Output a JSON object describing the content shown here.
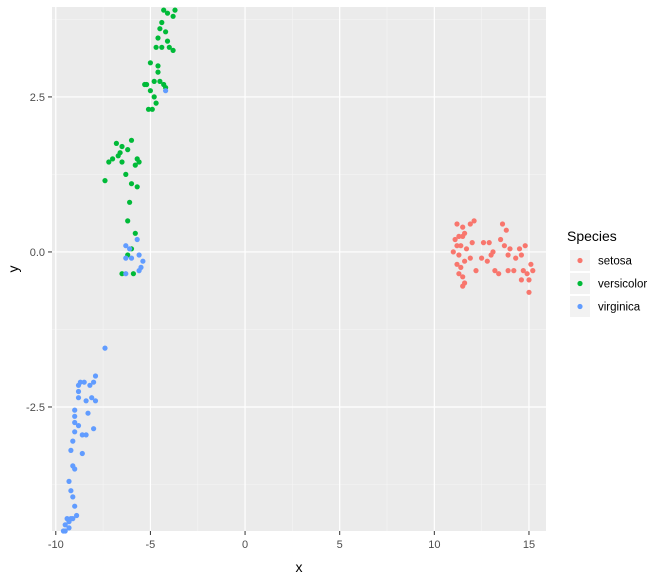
{
  "chart_data": {
    "type": "scatter",
    "title": "",
    "xlabel": "x",
    "ylabel": "y",
    "xlim": [
      -10.2,
      15.9
    ],
    "ylim": [
      -4.5,
      3.95
    ],
    "x_ticks": [
      -10,
      -5,
      0,
      5,
      10,
      15
    ],
    "y_ticks": [
      2.5,
      0.0,
      -2.5
    ],
    "y_tick_labels": [
      "2.5",
      "0.0",
      "-2.5"
    ],
    "grid": true,
    "background": "#ebebeb",
    "legend": {
      "title": "Species",
      "placement": "right"
    },
    "series": [
      {
        "name": "setosa",
        "color": "#F8766D",
        "points": [
          [
            11.2,
            0.45
          ],
          [
            11.5,
            0.4
          ],
          [
            11.9,
            0.45
          ],
          [
            12.1,
            0.5
          ],
          [
            11.1,
            0.2
          ],
          [
            11.3,
            0.25
          ],
          [
            11.5,
            0.25
          ],
          [
            11.6,
            0.3
          ],
          [
            11.2,
            0.1
          ],
          [
            11.4,
            0.1
          ],
          [
            11.0,
            0.0
          ],
          [
            11.7,
            0.05
          ],
          [
            11.3,
            -0.05
          ],
          [
            11.9,
            -0.1
          ],
          [
            11.6,
            -0.15
          ],
          [
            11.2,
            -0.2
          ],
          [
            11.4,
            -0.25
          ],
          [
            11.3,
            -0.35
          ],
          [
            11.5,
            -0.4
          ],
          [
            11.6,
            -0.5
          ],
          [
            11.5,
            -0.55
          ],
          [
            12.2,
            -0.3
          ],
          [
            12.0,
            0.15
          ],
          [
            12.6,
            0.15
          ],
          [
            12.9,
            0.15
          ],
          [
            12.5,
            -0.1
          ],
          [
            12.8,
            -0.15
          ],
          [
            13.0,
            -0.05
          ],
          [
            13.2,
            -0.3
          ],
          [
            13.4,
            -0.35
          ],
          [
            13.1,
            0.0
          ],
          [
            13.5,
            0.2
          ],
          [
            13.6,
            0.45
          ],
          [
            13.8,
            0.35
          ],
          [
            13.7,
            0.1
          ],
          [
            14.0,
            0.05
          ],
          [
            13.9,
            -0.05
          ],
          [
            14.3,
            -0.1
          ],
          [
            14.5,
            0.05
          ],
          [
            14.8,
            0.1
          ],
          [
            14.6,
            -0.05
          ],
          [
            14.2,
            -0.3
          ],
          [
            14.7,
            -0.3
          ],
          [
            14.9,
            -0.35
          ],
          [
            15.1,
            -0.2
          ],
          [
            15.2,
            -0.3
          ],
          [
            15.0,
            -0.45
          ],
          [
            15.0,
            -0.65
          ],
          [
            14.6,
            -0.45
          ],
          [
            13.9,
            -0.3
          ]
        ]
      },
      {
        "name": "versicolor",
        "color": "#00BA38",
        "points": [
          [
            -4.3,
            3.9
          ],
          [
            -4.1,
            3.85
          ],
          [
            -3.7,
            3.9
          ],
          [
            -3.8,
            3.8
          ],
          [
            -4.5,
            3.6
          ],
          [
            -4.2,
            3.55
          ],
          [
            -4.6,
            3.45
          ],
          [
            -4.1,
            3.4
          ],
          [
            -4.0,
            3.3
          ],
          [
            -4.4,
            3.3
          ],
          [
            -3.8,
            3.25
          ],
          [
            -4.7,
            3.3
          ],
          [
            -5.0,
            3.05
          ],
          [
            -4.6,
            2.9
          ],
          [
            -4.8,
            2.75
          ],
          [
            -5.2,
            2.7
          ],
          [
            -5.0,
            2.6
          ],
          [
            -4.5,
            2.75
          ],
          [
            -4.3,
            2.7
          ],
          [
            -4.8,
            2.5
          ],
          [
            -4.9,
            2.3
          ],
          [
            -5.1,
            2.3
          ],
          [
            -4.7,
            2.4
          ],
          [
            -6.5,
            1.7
          ],
          [
            -6.2,
            1.65
          ],
          [
            -6.8,
            1.75
          ],
          [
            -6.0,
            1.8
          ],
          [
            -7.0,
            1.5
          ],
          [
            -6.7,
            1.55
          ],
          [
            -7.2,
            1.45
          ],
          [
            -6.5,
            1.45
          ],
          [
            -5.8,
            1.4
          ],
          [
            -5.6,
            1.45
          ],
          [
            -6.3,
            1.25
          ],
          [
            -7.4,
            1.15
          ],
          [
            -6.0,
            1.1
          ],
          [
            -5.7,
            1.05
          ],
          [
            -6.1,
            0.8
          ],
          [
            -6.2,
            0.5
          ],
          [
            -5.8,
            0.3
          ],
          [
            -6.2,
            -0.05
          ],
          [
            -6.5,
            -0.35
          ],
          [
            -5.9,
            -0.35
          ],
          [
            -6.6,
            1.6
          ],
          [
            -5.7,
            1.5
          ],
          [
            -4.2,
            2.65
          ],
          [
            -6.0,
            0.05
          ],
          [
            -4.4,
            3.7
          ],
          [
            -4.6,
            3.0
          ],
          [
            -5.3,
            2.7
          ]
        ]
      },
      {
        "name": "virginica",
        "color": "#619CFF",
        "points": [
          [
            -4.2,
            2.6
          ],
          [
            -6.3,
            0.1
          ],
          [
            -6.3,
            -0.1
          ],
          [
            -6.1,
            0.05
          ],
          [
            -6.0,
            -0.1
          ],
          [
            -5.7,
            0.2
          ],
          [
            -5.6,
            -0.05
          ],
          [
            -5.4,
            -0.15
          ],
          [
            -5.5,
            -0.25
          ],
          [
            -5.6,
            -0.3
          ],
          [
            -6.3,
            -0.35
          ],
          [
            -7.4,
            -1.55
          ],
          [
            -7.9,
            -2.0
          ],
          [
            -8.0,
            -2.1
          ],
          [
            -8.2,
            -2.15
          ],
          [
            -8.7,
            -2.1
          ],
          [
            -8.5,
            -2.1
          ],
          [
            -8.8,
            -2.15
          ],
          [
            -7.9,
            -2.4
          ],
          [
            -8.1,
            -2.35
          ],
          [
            -8.4,
            -2.4
          ],
          [
            -8.8,
            -2.35
          ],
          [
            -9.0,
            -2.55
          ],
          [
            -9.0,
            -2.65
          ],
          [
            -8.3,
            -2.6
          ],
          [
            -8.0,
            -2.85
          ],
          [
            -8.8,
            -2.8
          ],
          [
            -9.0,
            -2.9
          ],
          [
            -8.6,
            -2.95
          ],
          [
            -8.4,
            -2.95
          ],
          [
            -9.1,
            -3.05
          ],
          [
            -9.2,
            -3.2
          ],
          [
            -8.6,
            -3.25
          ],
          [
            -9.1,
            -3.45
          ],
          [
            -9.0,
            -3.5
          ],
          [
            -9.3,
            -3.7
          ],
          [
            -9.2,
            -3.85
          ],
          [
            -9.1,
            -3.95
          ],
          [
            -9.0,
            -4.1
          ],
          [
            -8.9,
            -4.25
          ],
          [
            -9.1,
            -4.3
          ],
          [
            -9.4,
            -4.3
          ],
          [
            -9.3,
            -4.35
          ],
          [
            -9.5,
            -4.4
          ],
          [
            -9.3,
            -4.45
          ],
          [
            -9.6,
            -4.5
          ],
          [
            -9.5,
            -4.5
          ],
          [
            -9.2,
            -4.3
          ],
          [
            -8.8,
            -2.25
          ],
          [
            -9.0,
            -2.75
          ]
        ]
      }
    ]
  }
}
